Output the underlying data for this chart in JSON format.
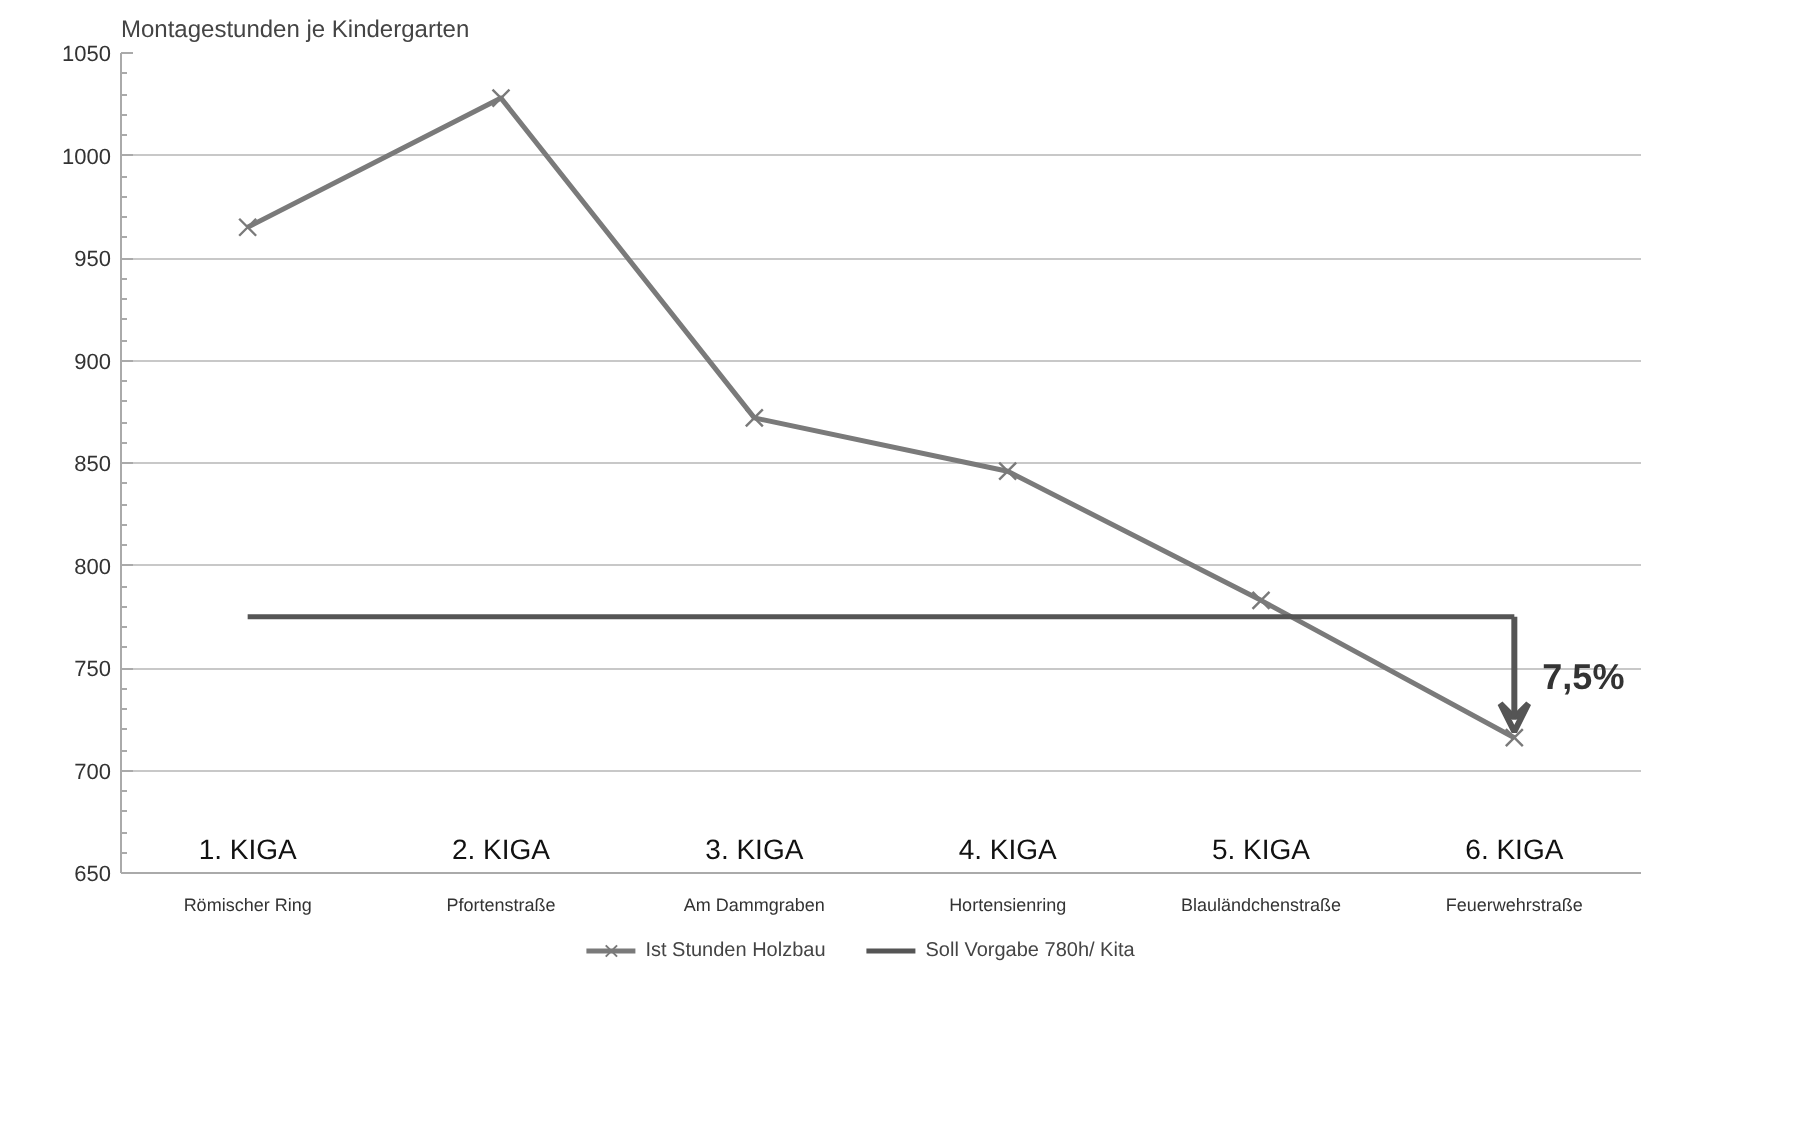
{
  "chart_data": {
    "type": "line",
    "title": "Montagestunden je Kindergarten",
    "categories": [
      "Römischer Ring",
      "Pfortenstraße",
      "Am Dammgraben",
      "Hortensienring",
      "Blauländchenstraße",
      "Feuerwehrstraße"
    ],
    "series": [
      {
        "name": "Ist Stunden Holzbau",
        "color": "#7a7a7a",
        "marker": "cross",
        "values": [
          965,
          1028,
          872,
          846,
          783,
          716
        ]
      },
      {
        "name": "Soll Vorgabe 780h/ Kita",
        "color": "#555555",
        "marker": "none",
        "values": [
          775,
          775,
          775,
          775,
          775,
          775
        ]
      }
    ],
    "ylim": [
      650,
      1050
    ],
    "yticks": [
      650,
      700,
      750,
      800,
      850,
      900,
      950,
      1000,
      1050
    ],
    "grid": "y",
    "legend": "bottom",
    "annotations": [
      "1. KIGA",
      "2. KIGA",
      "3. KIGA",
      "4. KIGA",
      "5. KIGA",
      "6. KIGA",
      "7,5%"
    ]
  }
}
